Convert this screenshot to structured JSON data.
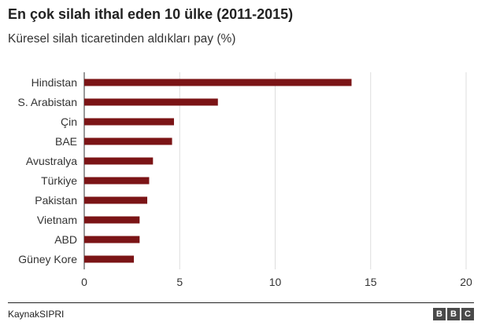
{
  "header": {
    "title": "En çok silah ithal eden 10 ülke (2011-2015)",
    "subtitle": "Küresel silah ticaretinden aldıkları pay (%)"
  },
  "footer": {
    "source": "KaynakSIPRI",
    "logo_letters": [
      "B",
      "B",
      "C"
    ]
  },
  "colors": {
    "bar": "#7b1416",
    "grid": "#dddddd",
    "axis_text": "#333333"
  },
  "chart_data": {
    "type": "bar",
    "orientation": "horizontal",
    "categories": [
      "Hindistan",
      "S. Arabistan",
      "Çin",
      "BAE",
      "Avustralya",
      "Türkiye",
      "Pakistan",
      "Vietnam",
      "ABD",
      "Güney Kore"
    ],
    "values": [
      14,
      7,
      4.7,
      4.6,
      3.6,
      3.4,
      3.3,
      2.9,
      2.9,
      2.6
    ],
    "xlim": [
      0,
      20
    ],
    "xticks": [
      0,
      5,
      10,
      15,
      20
    ],
    "grid": true,
    "xlabel": "",
    "ylabel": ""
  }
}
